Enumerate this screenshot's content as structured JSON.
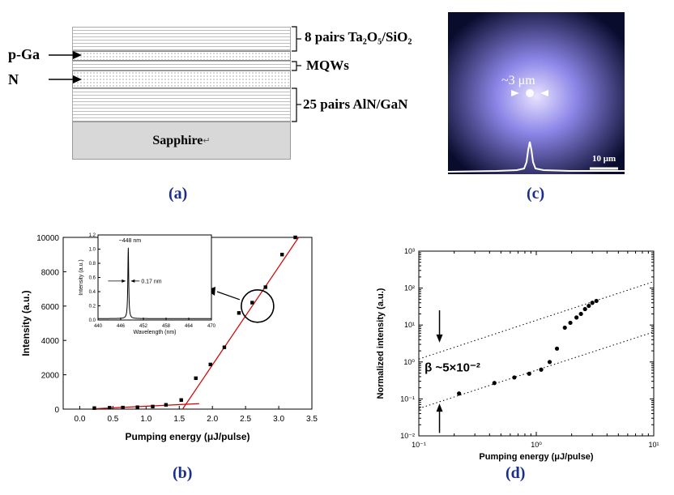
{
  "panel_a": {
    "label": "(a)",
    "layers": {
      "dbr_top": "8 pairs Ta₂O₅/SiO₂",
      "mqw": "MQWs",
      "dbr_bottom": "25 pairs AlN/GaN",
      "substrate": "Sapphire"
    },
    "arrow_labels": [
      "p-Ga",
      "N"
    ],
    "return_mark": "↵"
  },
  "panel_c": {
    "label": "(c)",
    "spot_size": "~3 μm",
    "scale_bar": "10 μm",
    "colors": {
      "background": "#0a0c2e",
      "glow": "#8c86e8",
      "core": "#e9e3ff"
    }
  },
  "panel_b": {
    "label": "(b)",
    "chart_data": {
      "type": "scatter",
      "xlabel": "Pumping energy (μJ/pulse)",
      "ylabel": "Intensity (a.u.)",
      "xlim": [
        -0.25,
        3.5
      ],
      "ylim": [
        0,
        10000
      ],
      "x_ticks": [
        0.0,
        0.5,
        1.0,
        1.5,
        2.0,
        2.5,
        3.0,
        3.5
      ],
      "x_tick_labels": [
        "0.0",
        "0.5",
        "1.0",
        "1.5",
        "2.0",
        "2.5",
        "3.0",
        "3.5"
      ],
      "y_ticks": [
        0,
        2000,
        4000,
        6000,
        8000,
        10000
      ],
      "y_tick_labels": [
        "0",
        "2000",
        "4000",
        "6000",
        "8000",
        "10000"
      ],
      "x": [
        0.22,
        0.45,
        0.65,
        0.87,
        1.1,
        1.3,
        1.53,
        1.75,
        1.97,
        2.18,
        2.4,
        2.6,
        2.8,
        3.05,
        3.25
      ],
      "y": [
        60,
        80,
        90,
        110,
        150,
        250,
        530,
        1800,
        2600,
        3600,
        5600,
        6200,
        7100,
        9000,
        10000
      ],
      "fit_lines": [
        {
          "x": [
            0.2,
            1.8
          ],
          "y": [
            20,
            320
          ]
        },
        {
          "x": [
            1.55,
            3.3
          ],
          "y": [
            0,
            10000
          ]
        }
      ],
      "series_color": "#d40000",
      "inset": {
        "type": "line",
        "xlabel": "Wavelength (nm)",
        "ylabel": "Intensity (a.u.)",
        "xlim": [
          440,
          470
        ],
        "ylim": [
          0,
          1.2
        ],
        "x_ticks": [
          440,
          446,
          452,
          458,
          464,
          470
        ],
        "x_tick_labels": [
          "440",
          "446",
          "452",
          "458",
          "464",
          "470"
        ],
        "y_ticks": [
          0.0,
          0.2,
          0.4,
          0.6,
          0.8,
          1.0,
          1.2
        ],
        "y_tick_labels": [
          "0.0",
          "0.2",
          "0.4",
          "0.6",
          "0.8",
          "1.0",
          "1.2"
        ],
        "peak_label": "~448 nm",
        "fwhm_label": "0.17 nm",
        "peak_x": 448,
        "peak_width": 0.17
      }
    }
  },
  "panel_d": {
    "label": "(d)",
    "chart_data": {
      "type": "scatter",
      "scale": "log-log",
      "xlabel": "Pumping energy (μJ/pulse)",
      "ylabel": "Normalized intensity (a.u.)",
      "xlim": [
        0.1,
        10
      ],
      "ylim": [
        0.01,
        1000
      ],
      "x_tick_labels": [
        "10⁻¹",
        "10⁰",
        "10¹"
      ],
      "y_tick_labels": [
        "10⁻²",
        "10⁻¹",
        "10⁰",
        "10¹",
        "10²",
        "10³"
      ],
      "x": [
        0.22,
        0.44,
        0.65,
        0.87,
        1.1,
        1.3,
        1.5,
        1.75,
        1.95,
        2.2,
        2.4,
        2.6,
        2.8,
        3.0,
        3.25
      ],
      "y": [
        0.14,
        0.27,
        0.38,
        0.48,
        0.62,
        1.0,
        2.3,
        8.5,
        11.5,
        16,
        20,
        27,
        33,
        40,
        45
      ],
      "guide_lines": [
        {
          "name": "upper",
          "x": [
            0.1,
            10
          ],
          "y": [
            1.2,
            150
          ]
        },
        {
          "name": "lower",
          "x": [
            0.1,
            10
          ],
          "y": [
            0.055,
            6.5
          ]
        }
      ],
      "beta_label": "β ~5×10⁻²"
    }
  }
}
